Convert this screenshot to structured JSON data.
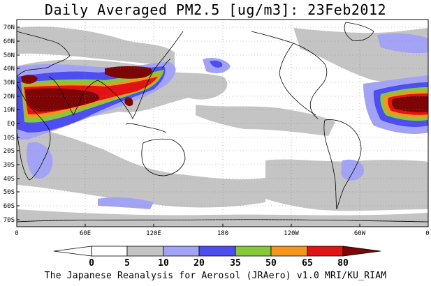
{
  "title": "Daily Averaged PM2.5 [ug/m3]: 23Feb2012",
  "footer": "The Japanese Reanalysis for Aerosol (JRAero) v1.0 MRI/KU_RIAM",
  "map": {
    "lat_labels": [
      "70N",
      "60N",
      "50N",
      "40N",
      "30N",
      "20N",
      "10N",
      "EQ",
      "10S",
      "20S",
      "30S",
      "40S",
      "50S",
      "60S",
      "70S"
    ],
    "lon_labels": [
      "0",
      "60E",
      "120E",
      "180",
      "120W",
      "60W",
      "0"
    ]
  },
  "colorbar": {
    "levels": [
      "0",
      "5",
      "10",
      "20",
      "35",
      "50",
      "65",
      "80"
    ],
    "colors": [
      "#ffffff",
      "#c4c4c4",
      "#a3a3f5",
      "#4e4ef0",
      "#86c83a",
      "#f5951e",
      "#e21313",
      "#7d0505"
    ]
  },
  "chart_data": {
    "type": "heatmap",
    "title": "Daily Averaged PM2.5 [ug/m3]: 23Feb2012",
    "x_ticks": [
      "0",
      "60E",
      "120E",
      "180",
      "120W",
      "60W",
      "0"
    ],
    "y_ticks": [
      "70N",
      "60N",
      "50N",
      "40N",
      "30N",
      "20N",
      "10N",
      "EQ",
      "10S",
      "20S",
      "30S",
      "40S",
      "50S",
      "60S",
      "70S"
    ],
    "lon_range": [
      0,
      360
    ],
    "lat_range": [
      -75,
      75
    ],
    "color_levels": [
      0,
      5,
      10,
      20,
      35,
      50,
      65,
      80
    ]
  }
}
